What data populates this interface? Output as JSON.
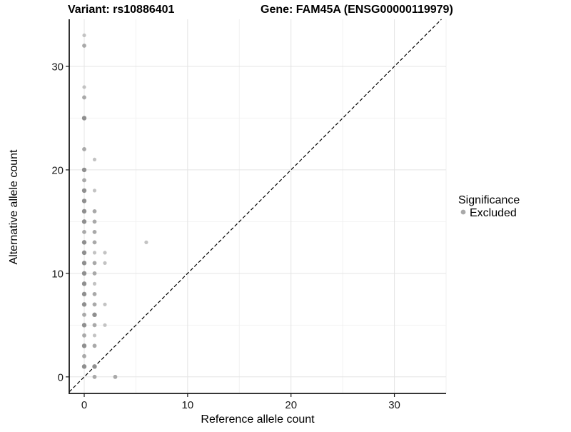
{
  "titles": {
    "variant": "Variant: rs10886401",
    "gene": "Gene: FAM45A (ENSG00000119979)"
  },
  "chart_data": {
    "type": "scatter",
    "xlabel": "Reference allele count",
    "ylabel": "Alternative allele count",
    "xlim": [
      -1.45,
      35.0
    ],
    "ylim": [
      -1.6,
      34.55
    ],
    "x_ticks": [
      0,
      10,
      20,
      30
    ],
    "y_ticks": [
      0,
      10,
      20,
      30
    ],
    "x_minor_ticks": [
      5,
      15,
      25,
      35
    ],
    "y_minor_ticks": [
      5,
      15,
      25
    ],
    "grid": "on",
    "legend": {
      "title": "Significance",
      "position": "right",
      "items": [
        {
          "label": "Excluded",
          "color": "#a9a9a9"
        }
      ]
    },
    "identity_line": {
      "style": "dashed",
      "slope": 1,
      "intercept": 0,
      "color": "#000000"
    },
    "colors": {
      "grid_major": "#e4e4e4",
      "grid_minor": "#f2f2f2",
      "axis_line": "#1a1a1a",
      "point_light": "#c3c3c3",
      "point_medium": "#a9a9a9",
      "point_dark": "#8f8f8f"
    },
    "series": [
      {
        "name": "Excluded",
        "points": [
          [
            0,
            33,
            "light"
          ],
          [
            0,
            32,
            "medium"
          ],
          [
            0,
            28,
            "light"
          ],
          [
            0,
            27,
            "medium"
          ],
          [
            0,
            25,
            "dark"
          ],
          [
            0,
            22,
            "medium"
          ],
          [
            1,
            21,
            "light"
          ],
          [
            0,
            20,
            "dark"
          ],
          [
            0,
            19,
            "medium"
          ],
          [
            0,
            18,
            "dark"
          ],
          [
            1,
            18,
            "light"
          ],
          [
            0,
            17,
            "dark"
          ],
          [
            0,
            16,
            "dark"
          ],
          [
            1,
            16,
            "medium"
          ],
          [
            0,
            15,
            "dark"
          ],
          [
            1,
            15,
            "medium"
          ],
          [
            0,
            14,
            "medium"
          ],
          [
            1,
            14,
            "medium"
          ],
          [
            0,
            13,
            "dark"
          ],
          [
            1,
            13,
            "medium"
          ],
          [
            6,
            13,
            "light"
          ],
          [
            0,
            12,
            "dark"
          ],
          [
            1,
            12,
            "light"
          ],
          [
            2,
            12,
            "light"
          ],
          [
            0,
            11,
            "dark"
          ],
          [
            1,
            11,
            "medium"
          ],
          [
            2,
            11,
            "light"
          ],
          [
            0,
            10,
            "dark"
          ],
          [
            1,
            10,
            "medium"
          ],
          [
            0,
            9,
            "dark"
          ],
          [
            1,
            9,
            "light"
          ],
          [
            0,
            8,
            "dark"
          ],
          [
            1,
            8,
            "medium"
          ],
          [
            0,
            7,
            "dark"
          ],
          [
            1,
            7,
            "medium"
          ],
          [
            2,
            7,
            "light"
          ],
          [
            0,
            6,
            "medium"
          ],
          [
            1,
            6,
            "dark"
          ],
          [
            0,
            5,
            "dark"
          ],
          [
            1,
            5,
            "medium"
          ],
          [
            2,
            5,
            "light"
          ],
          [
            0,
            4,
            "medium"
          ],
          [
            1,
            4,
            "light"
          ],
          [
            0,
            3,
            "dark"
          ],
          [
            1,
            3,
            "medium"
          ],
          [
            0,
            2,
            "medium"
          ],
          [
            0,
            1,
            "dark"
          ],
          [
            1,
            1,
            "dark"
          ],
          [
            1,
            0,
            "medium"
          ],
          [
            3,
            0,
            "medium"
          ]
        ]
      }
    ]
  }
}
